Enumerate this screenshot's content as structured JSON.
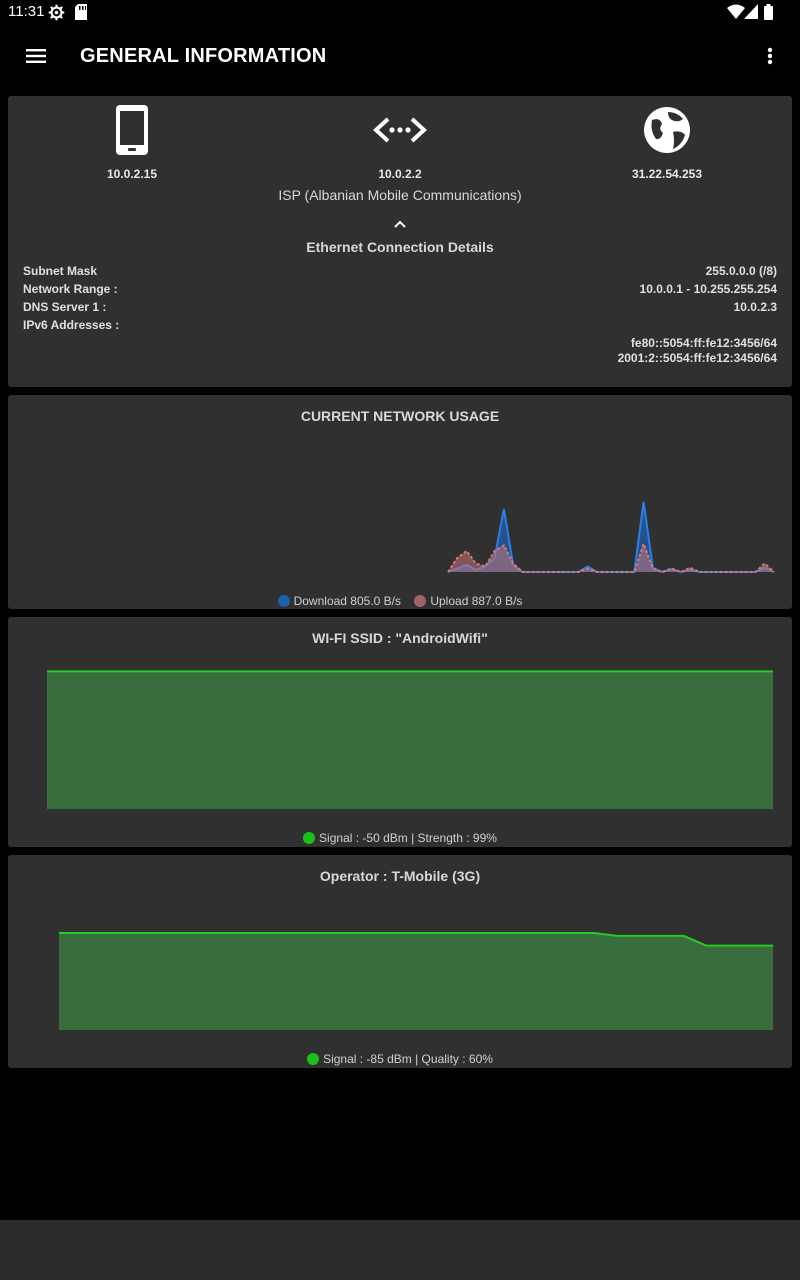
{
  "status_bar": {
    "time": "11:31",
    "icons": [
      "settings-icon",
      "sd-card-icon",
      "wifi-icon",
      "signal-icon",
      "battery-icon"
    ]
  },
  "app_bar": {
    "title": "GENERAL INFORMATION",
    "menu_icon": "hamburger-icon",
    "overflow_icon": "more-vert-icon"
  },
  "connection": {
    "local_ip": "10.0.2.15",
    "gateway_ip": "10.0.2.2",
    "public_ip": "31.22.54.253",
    "isp": "ISP (Albanian Mobile Communications)",
    "details_title": "Ethernet Connection Details",
    "details": [
      {
        "label": "Subnet Mask",
        "value": "255.0.0.0 (/8)"
      },
      {
        "label": "Network Range :",
        "value": "10.0.0.1 - 10.255.255.254"
      },
      {
        "label": "DNS Server 1 :",
        "value": "10.0.2.3"
      },
      {
        "label": "IPv6 Addresses :",
        "value": ""
      }
    ],
    "ipv6": [
      "fe80::5054:ff:fe12:3456/64",
      "2001:2::5054:ff:fe12:3456/64"
    ]
  },
  "usage": {
    "title": "CURRENT NETWORK USAGE",
    "download_label": "Download 805.0  B/s",
    "upload_label": "Upload 887.0  B/s",
    "colors": {
      "download": "#1e6fd9",
      "upload": "#d9777a"
    }
  },
  "wifi": {
    "title": "WI-FI SSID :  \"AndroidWifi\"",
    "legend": "Signal : -50 dBm  |  Strength : 99%",
    "color": "#22cc22"
  },
  "operator": {
    "title": "Operator : T-Mobile (3G)",
    "legend": "Signal :  -85 dBm  |  Quality : 60%",
    "color": "#22cc22"
  },
  "chart_data": [
    {
      "type": "area",
      "title": "CURRENT NETWORK USAGE",
      "series": [
        {
          "name": "Download",
          "values": [
            0,
            0.05,
            0.1,
            0.03,
            0.08,
            0.2,
            0.9,
            0.1,
            0,
            0,
            0,
            0,
            0,
            0,
            0,
            0.08,
            0,
            0,
            0,
            0,
            0,
            1,
            0.06,
            0,
            0.04,
            0,
            0.03,
            0,
            0,
            0,
            0,
            0,
            0,
            0,
            0.06,
            0
          ]
        },
        {
          "name": "Upload",
          "values": [
            0,
            0.2,
            0.3,
            0.12,
            0.08,
            0.3,
            0.38,
            0.12,
            0,
            0,
            0,
            0,
            0,
            0,
            0,
            0.05,
            0,
            0,
            0,
            0,
            0,
            0.4,
            0.05,
            0,
            0.05,
            0,
            0.06,
            0,
            0,
            0,
            0,
            0,
            0,
            0,
            0.12,
            0
          ]
        }
      ]
    },
    {
      "type": "area",
      "title": "WI-FI SSID :  \"AndroidWifi\"",
      "series": [
        {
          "name": "Signal",
          "values": [
            99,
            99,
            99,
            99,
            99,
            99,
            99,
            99,
            99,
            99
          ]
        }
      ],
      "ylim": [
        0,
        100
      ]
    },
    {
      "type": "area",
      "title": "Operator : T-Mobile (3G)",
      "series": [
        {
          "name": "Signal",
          "values": [
            100,
            100,
            100,
            100,
            100,
            100,
            100,
            100,
            100,
            100,
            100,
            100,
            100,
            100,
            100,
            100,
            100,
            100,
            100,
            100,
            100,
            100,
            100,
            100,
            100,
            97,
            97,
            97,
            97,
            87,
            87,
            87,
            87
          ]
        }
      ],
      "ylim": [
        0,
        100
      ]
    }
  ]
}
